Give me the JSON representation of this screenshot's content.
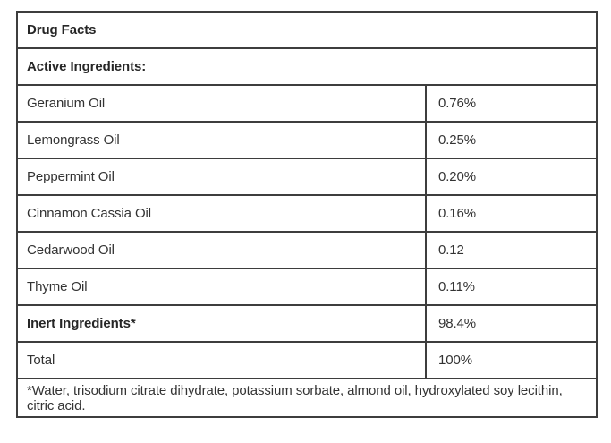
{
  "table": {
    "title": "Drug Facts",
    "section_header": "Active Ingredients:",
    "rows": [
      {
        "label": "Geranium Oil",
        "value": "0.76%"
      },
      {
        "label": "Lemongrass Oil",
        "value": "0.25%"
      },
      {
        "label": "Peppermint Oil",
        "value": "0.20%"
      },
      {
        "label": "Cinnamon Cassia Oil",
        "value": "0.16%"
      },
      {
        "label": "Cedarwood Oil",
        "value": "0.12"
      },
      {
        "label": "Thyme Oil",
        "value": "0.11%"
      },
      {
        "label": "Inert Ingredients*",
        "value": "98.4%"
      },
      {
        "label": "Total",
        "value": "100%"
      }
    ],
    "footnote": "*Water, trisodium citrate dihydrate, potassium sorbate, almond oil, hydroxylated soy lecithin, citric acid.",
    "colors": {
      "border": "#3d3d3d",
      "text": "#333333",
      "background": "#ffffff"
    }
  }
}
